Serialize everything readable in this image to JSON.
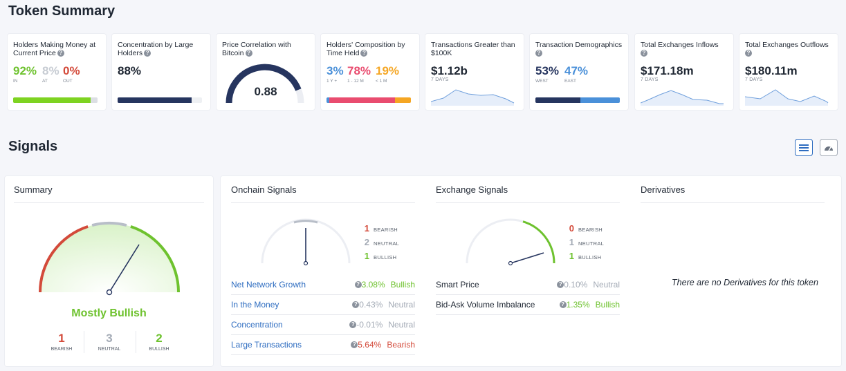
{
  "titles": {
    "token_summary": "Token Summary",
    "signals": "Signals"
  },
  "cards": {
    "holders_money": {
      "title": "Holders Making Money at Current Price",
      "in_value": "92%",
      "in_label": "IN",
      "at_value": "8%",
      "at_label": "AT",
      "out_value": "0%",
      "out_label": "OUT",
      "in_fraction": 0.92,
      "at_fraction": 0.08
    },
    "concentration": {
      "title": "Concentration by Large Holders",
      "value": "88%",
      "fraction": 0.88
    },
    "price_correlation": {
      "title": "Price Correlation with Bitcoin",
      "value": "0.88",
      "fraction": 0.88
    },
    "composition": {
      "title": "Holders' Composition by Time Held",
      "v1": "3%",
      "l1": "1 Y +",
      "v2": "78%",
      "l2": "1 - 12 M",
      "v3": "19%",
      "l3": "< 1 M",
      "fractions": [
        0.03,
        0.78,
        0.19
      ]
    },
    "tx_greater": {
      "title": "Transactions Greater than $100K",
      "value": "$1.12b",
      "sub": "7 DAYS"
    },
    "tx_demographics": {
      "title": "Transaction Demographics",
      "west_value": "53%",
      "west_label": "WEST",
      "east_value": "47%",
      "east_label": "EAST",
      "west_fraction": 0.53
    },
    "inflows": {
      "title": "Total Exchanges Inflows",
      "value": "$171.18m",
      "sub": "7 DAYS"
    },
    "outflows": {
      "title": "Total Exchanges Outflows",
      "value": "$180.11m",
      "sub": "7 DAYS"
    }
  },
  "summary": {
    "title": "Summary",
    "verdict": "Mostly Bullish",
    "bearish": {
      "count": "1",
      "label": "BEARISH"
    },
    "neutral": {
      "count": "3",
      "label": "NEUTRAL"
    },
    "bullish": {
      "count": "2",
      "label": "BULLISH"
    }
  },
  "onchain": {
    "title": "Onchain Signals",
    "bearish": {
      "count": "1",
      "label": "BEARISH"
    },
    "neutral": {
      "count": "2",
      "label": "NEUTRAL"
    },
    "bullish": {
      "count": "1",
      "label": "BULLISH"
    },
    "rows": [
      {
        "name": "Net Network Growth",
        "pct": "3.08%",
        "signal": "Bullish"
      },
      {
        "name": "In the Money",
        "pct": "0.43%",
        "signal": "Neutral"
      },
      {
        "name": "Concentration",
        "pct": "-0.01%",
        "signal": "Neutral"
      },
      {
        "name": "Large Transactions",
        "pct": "5.64%",
        "signal": "Bearish"
      }
    ]
  },
  "exchange": {
    "title": "Exchange Signals",
    "bearish": {
      "count": "0",
      "label": "BEARISH"
    },
    "neutral": {
      "count": "1",
      "label": "NEUTRAL"
    },
    "bullish": {
      "count": "1",
      "label": "BULLISH"
    },
    "rows": [
      {
        "name": "Smart Price",
        "pct": "0.10%",
        "signal": "Neutral"
      },
      {
        "name": "Bid-Ask Volume Imbalance",
        "pct": "1.35%",
        "signal": "Bullish"
      }
    ]
  },
  "derivatives": {
    "title": "Derivatives",
    "empty_text": "There are no Derivatives for this token"
  },
  "icons": {
    "help": "question-circle-icon",
    "list_view": "list-icon",
    "gauge_view": "gauge-icon"
  },
  "colors": {
    "bullish": "#6ec22e",
    "bearish": "#d34a3a",
    "neutral": "#a3aab5",
    "navy": "#26355f",
    "link": "#2d6cc0",
    "pink": "#e94c6f",
    "orange": "#f5a623",
    "blue": "#4a90d9"
  }
}
